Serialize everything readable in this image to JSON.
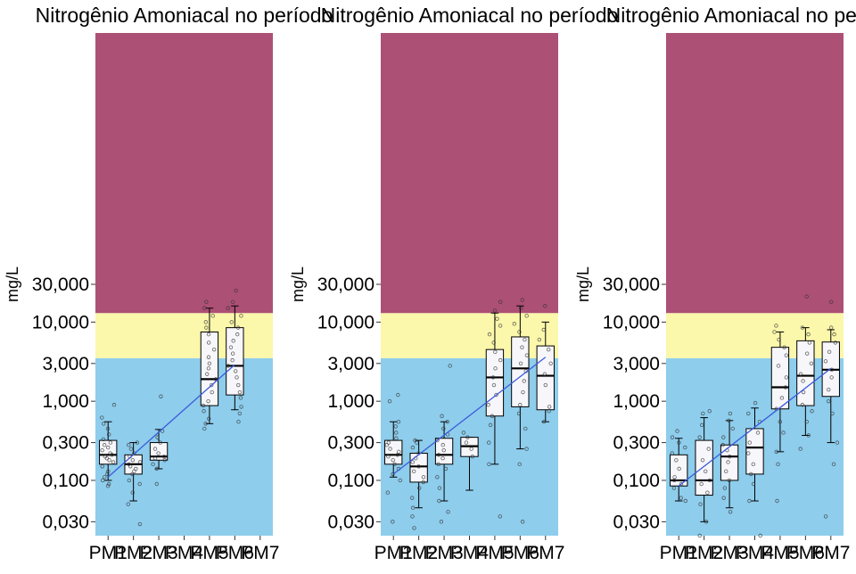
{
  "colors": {
    "band_red": "#ad5075",
    "band_yellow": "#fbf7ab",
    "band_blue": "#8ecdec",
    "box_fill": "#f7f7fb",
    "trend": "#3b5bdb",
    "point": "#333333"
  },
  "chart_data": [
    {
      "type": "box",
      "title": "Nitrogênio Amoniacal no período",
      "ylabel": "mg/L",
      "xlabel": "",
      "yscale": "log10",
      "ylim": [
        0.02,
        45000
      ],
      "yticks": [
        0.03,
        0.1,
        0.3,
        1,
        3,
        10,
        30
      ],
      "ytick_labels": [
        "0,030",
        "0,100",
        "0,300",
        "1,000",
        "3,000",
        "10,000",
        "30,000"
      ],
      "categories": [
        "PM1",
        "PM2",
        "PM3",
        "PM4",
        "PM5",
        "PM6",
        "PM7"
      ],
      "bands": [
        {
          "from": 0.02,
          "to": 3.5,
          "color": "band_blue"
        },
        {
          "from": 3.5,
          "to": 13,
          "color": "band_yellow"
        },
        {
          "from": 13,
          "to": 45000,
          "color": "band_red"
        }
      ],
      "boxes": [
        {
          "category": "PM1",
          "whisker_low": 0.1,
          "q1": 0.16,
          "median": 0.21,
          "q3": 0.32,
          "whisker_high": 0.55
        },
        {
          "category": "PM2",
          "whisker_low": 0.055,
          "q1": 0.12,
          "median": 0.16,
          "q3": 0.21,
          "whisker_high": 0.3
        },
        {
          "category": "PM3",
          "whisker_low": 0.14,
          "q1": 0.18,
          "median": 0.2,
          "q3": 0.3,
          "whisker_high": 0.44
        },
        {
          "category": "PM5",
          "whisker_low": 0.52,
          "q1": 0.88,
          "median": 1.9,
          "q3": 7.5,
          "whisker_high": 15
        },
        {
          "category": "PM6",
          "whisker_low": 0.78,
          "q1": 1.2,
          "median": 2.8,
          "q3": 8.5,
          "whisker_high": 16
        }
      ],
      "points": [
        {
          "category": "PM1",
          "values": [
            0.085,
            0.09,
            0.1,
            0.11,
            0.12,
            0.13,
            0.15,
            0.17,
            0.18,
            0.19,
            0.2,
            0.21,
            0.22,
            0.24,
            0.26,
            0.28,
            0.3,
            0.33,
            0.38,
            0.45,
            0.52,
            0.62,
            0.9
          ]
        },
        {
          "category": "PM2",
          "values": [
            0.028,
            0.05,
            0.07,
            0.09,
            0.1,
            0.12,
            0.13,
            0.14,
            0.15,
            0.16,
            0.17,
            0.18,
            0.2,
            0.22,
            0.25,
            0.28,
            0.3
          ]
        },
        {
          "category": "PM3",
          "values": [
            0.09,
            0.14,
            0.16,
            0.18,
            0.19,
            0.2,
            0.22,
            0.25,
            0.3,
            0.35,
            0.42,
            1.15
          ]
        },
        {
          "category": "PM5",
          "values": [
            0.45,
            0.52,
            0.6,
            0.75,
            0.88,
            1.0,
            1.3,
            1.6,
            1.9,
            2.2,
            2.6,
            3.0,
            3.6,
            4.5,
            5.5,
            7.0,
            8.5,
            10,
            12,
            15,
            18
          ]
        },
        {
          "category": "PM6",
          "values": [
            0.55,
            0.7,
            0.85,
            1.1,
            1.3,
            1.6,
            2.0,
            2.4,
            2.8,
            3.3,
            4.0,
            4.8,
            5.8,
            7.0,
            8.5,
            10,
            12,
            15,
            18,
            25
          ]
        }
      ],
      "trend": [
        {
          "x": "PM1",
          "y": 0.11
        },
        {
          "x": "PM6",
          "y": 2.9
        }
      ]
    },
    {
      "type": "box",
      "title": "Nitrogênio Amoniacal no período",
      "ylabel": "mg/L",
      "xlabel": "",
      "yscale": "log10",
      "ylim": [
        0.02,
        45000
      ],
      "yticks": [
        0.03,
        0.1,
        0.3,
        1,
        3,
        10,
        30
      ],
      "ytick_labels": [
        "0,030",
        "0,100",
        "0,300",
        "1,000",
        "3,000",
        "10,000",
        "30,000"
      ],
      "categories": [
        "PM1",
        "PM2",
        "PM3",
        "PM4",
        "PM5",
        "PM6",
        "PM7"
      ],
      "bands": [
        {
          "from": 0.02,
          "to": 3.5,
          "color": "band_blue"
        },
        {
          "from": 3.5,
          "to": 13,
          "color": "band_yellow"
        },
        {
          "from": 13,
          "to": 45000,
          "color": "band_red"
        }
      ],
      "boxes": [
        {
          "category": "PM1",
          "whisker_low": 0.11,
          "q1": 0.16,
          "median": 0.21,
          "q3": 0.32,
          "whisker_high": 0.55
        },
        {
          "category": "PM2",
          "whisker_low": 0.045,
          "q1": 0.095,
          "median": 0.15,
          "q3": 0.22,
          "whisker_high": 0.32
        },
        {
          "category": "PM3",
          "whisker_low": 0.055,
          "q1": 0.16,
          "median": 0.21,
          "q3": 0.34,
          "whisker_high": 0.55
        },
        {
          "category": "PM4",
          "whisker_low": 0.075,
          "q1": 0.2,
          "median": 0.27,
          "q3": 0.35,
          "whisker_high": 0.35
        },
        {
          "category": "PM5",
          "whisker_low": 0.16,
          "q1": 0.65,
          "median": 2.0,
          "q3": 4.5,
          "whisker_high": 13
        },
        {
          "category": "PM6",
          "whisker_low": 0.25,
          "q1": 0.85,
          "median": 2.6,
          "q3": 6.5,
          "whisker_high": 16
        },
        {
          "category": "PM7",
          "whisker_low": 0.55,
          "q1": 0.78,
          "median": 2.1,
          "q3": 5.0,
          "whisker_high": 10
        }
      ],
      "points": [
        {
          "category": "PM1",
          "values": [
            0.03,
            0.07,
            0.1,
            0.12,
            0.14,
            0.16,
            0.18,
            0.2,
            0.21,
            0.23,
            0.25,
            0.28,
            0.3,
            0.34,
            0.4,
            0.48,
            0.55,
            1.0,
            1.2
          ]
        },
        {
          "category": "PM2",
          "values": [
            0.025,
            0.035,
            0.045,
            0.06,
            0.08,
            0.095,
            0.11,
            0.13,
            0.15,
            0.17,
            0.19,
            0.22,
            0.26,
            0.3,
            0.32
          ]
        },
        {
          "category": "PM3",
          "values": [
            0.03,
            0.04,
            0.055,
            0.08,
            0.11,
            0.14,
            0.16,
            0.19,
            0.21,
            0.24,
            0.28,
            0.32,
            0.38,
            0.45,
            0.55,
            0.65,
            2.8
          ]
        },
        {
          "category": "PM4",
          "values": [
            0.2,
            0.25,
            0.3,
            0.35,
            0.4
          ]
        },
        {
          "category": "PM5",
          "values": [
            0.035,
            0.16,
            0.3,
            0.5,
            0.65,
            0.9,
            1.2,
            1.6,
            2.0,
            2.6,
            3.3,
            4.2,
            5.5,
            7,
            9,
            11,
            14,
            18
          ]
        },
        {
          "category": "PM6",
          "values": [
            0.03,
            0.16,
            0.25,
            0.45,
            0.7,
            0.9,
            1.3,
            1.8,
            2.4,
            3.0,
            3.8,
            4.8,
            6.0,
            7.5,
            9.5,
            12,
            15,
            19
          ]
        },
        {
          "category": "PM7",
          "values": [
            0.55,
            0.75,
            0.85,
            1.6,
            2.2,
            3.0,
            4.5,
            6.0,
            8.0,
            16
          ]
        }
      ],
      "trend": [
        {
          "x": "PM1",
          "y": 0.12
        },
        {
          "x": "PM7",
          "y": 3.6
        }
      ]
    },
    {
      "type": "box",
      "title": "Nitrogênio Amoniacal no período",
      "ylabel": "mg/L",
      "xlabel": "",
      "yscale": "log10",
      "ylim": [
        0.02,
        45000
      ],
      "yticks": [
        0.03,
        0.1,
        0.3,
        1,
        3,
        10,
        30
      ],
      "ytick_labels": [
        "0,030",
        "0,100",
        "0,300",
        "1,000",
        "3,000",
        "10,000",
        "30,000"
      ],
      "categories": [
        "PM1",
        "PM2",
        "PM3",
        "PM4",
        "PM5",
        "PM6",
        "PM7"
      ],
      "bands": [
        {
          "from": 0.02,
          "to": 3.5,
          "color": "band_blue"
        },
        {
          "from": 3.5,
          "to": 13,
          "color": "band_yellow"
        },
        {
          "from": 13,
          "to": 45000,
          "color": "band_red"
        }
      ],
      "boxes": [
        {
          "category": "PM1",
          "whisker_low": 0.055,
          "q1": 0.085,
          "median": 0.1,
          "q3": 0.21,
          "whisker_high": 0.34
        },
        {
          "category": "PM2",
          "whisker_low": 0.03,
          "q1": 0.065,
          "median": 0.1,
          "q3": 0.32,
          "whisker_high": 0.62
        },
        {
          "category": "PM3",
          "whisker_low": 0.045,
          "q1": 0.1,
          "median": 0.2,
          "q3": 0.28,
          "whisker_high": 0.57
        },
        {
          "category": "PM4",
          "whisker_low": 0.055,
          "q1": 0.12,
          "median": 0.26,
          "q3": 0.45,
          "whisker_high": 0.82
        },
        {
          "category": "PM5",
          "whisker_low": 0.23,
          "q1": 0.8,
          "median": 1.5,
          "q3": 4.8,
          "whisker_high": 7.5
        },
        {
          "category": "PM6",
          "whisker_low": 0.37,
          "q1": 0.88,
          "median": 2.1,
          "q3": 5.8,
          "whisker_high": 8.5
        },
        {
          "category": "PM7",
          "whisker_low": 0.3,
          "q1": 1.15,
          "median": 2.5,
          "q3": 5.6,
          "whisker_high": 8.0
        }
      ],
      "points": [
        {
          "category": "PM1",
          "values": [
            0.055,
            0.06,
            0.08,
            0.09,
            0.1,
            0.11,
            0.14,
            0.18,
            0.22,
            0.26,
            0.3,
            0.35,
            0.42
          ]
        },
        {
          "category": "PM2",
          "values": [
            0.02,
            0.03,
            0.05,
            0.07,
            0.09,
            0.1,
            0.13,
            0.18,
            0.25,
            0.35,
            0.5,
            0.7,
            0.75
          ]
        },
        {
          "category": "PM3",
          "values": [
            0.04,
            0.06,
            0.08,
            0.1,
            0.13,
            0.17,
            0.2,
            0.24,
            0.28,
            0.35,
            0.45,
            0.57,
            0.7
          ]
        },
        {
          "category": "PM4",
          "values": [
            0.02,
            0.055,
            0.09,
            0.12,
            0.16,
            0.22,
            0.3,
            0.4,
            0.55,
            0.7,
            0.95
          ]
        },
        {
          "category": "PM5",
          "values": [
            0.055,
            0.16,
            0.23,
            0.4,
            0.55,
            0.8,
            1.1,
            1.5,
            2.0,
            2.8,
            3.8,
            4.8,
            6.0,
            7.5,
            9.0
          ]
        },
        {
          "category": "PM6",
          "values": [
            0.25,
            0.37,
            0.55,
            0.75,
            0.9,
            1.3,
            1.8,
            2.2,
            3.0,
            4.0,
            5.5,
            7.0,
            8.5,
            21
          ]
        },
        {
          "category": "PM7",
          "values": [
            0.035,
            0.16,
            0.3,
            0.7,
            1.0,
            1.4,
            2.0,
            2.5,
            3.2,
            4.2,
            5.5,
            7.0,
            8.5,
            18
          ]
        }
      ],
      "trend": [
        {
          "x": "PM1",
          "y": 0.085
        },
        {
          "x": "PM7",
          "y": 2.6
        }
      ]
    }
  ]
}
